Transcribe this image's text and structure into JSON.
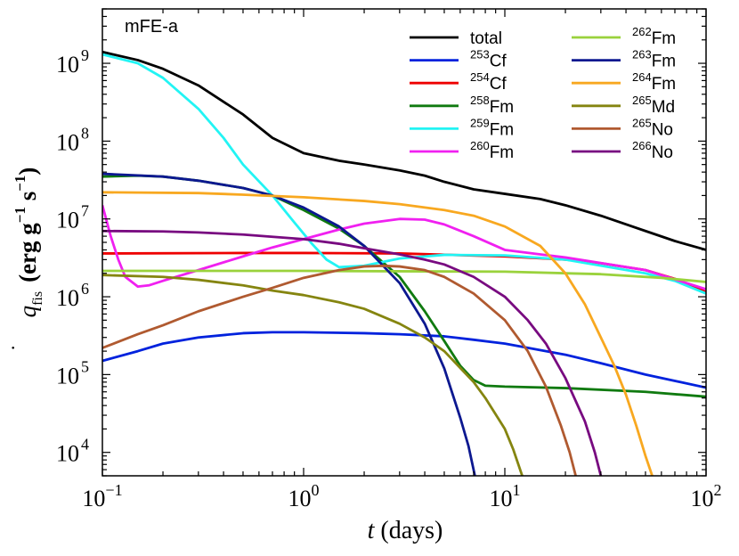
{
  "chart_data": {
    "type": "line",
    "panel_label": "mFE-a",
    "xlabel": {
      "var": "t",
      "rest": " (days)"
    },
    "ylabel": {
      "var": "q",
      "sub": "fis",
      "unit_pre": "(erg g",
      "unit_exp1": "−1",
      "unit_mid": " s",
      "unit_exp2": "−1",
      "unit_post": ")"
    },
    "xscale": "log",
    "yscale": "log",
    "xlim": [
      0.1,
      100
    ],
    "ylim": [
      5000,
      5000000000
    ],
    "xticks": [
      {
        "value": 0.1,
        "base": "10",
        "exp": "−1"
      },
      {
        "value": 1,
        "base": "10",
        "exp": "0"
      },
      {
        "value": 10,
        "base": "10",
        "exp": "1"
      },
      {
        "value": 100,
        "base": "10",
        "exp": "2"
      }
    ],
    "yticks": [
      {
        "value": 10000,
        "base": "10",
        "exp": "4"
      },
      {
        "value": 100000,
        "base": "10",
        "exp": "5"
      },
      {
        "value": 1000000,
        "base": "10",
        "exp": "6"
      },
      {
        "value": 10000000,
        "base": "10",
        "exp": "7"
      },
      {
        "value": 100000000,
        "base": "10",
        "exp": "8"
      },
      {
        "value": 1000000000,
        "base": "10",
        "exp": "9"
      }
    ],
    "legend_position": "top-right",
    "series": [
      {
        "name": "total",
        "sup": "",
        "base": "total",
        "color": "#000000",
        "points": [
          [
            0.1,
            1400000000.0
          ],
          [
            0.15,
            1100000000.0
          ],
          [
            0.2,
            850000000.0
          ],
          [
            0.3,
            520000000.0
          ],
          [
            0.5,
            220000000.0
          ],
          [
            0.7,
            110000000.0
          ],
          [
            1,
            70000000.0
          ],
          [
            1.5,
            56000000.0
          ],
          [
            2,
            50000000.0
          ],
          [
            3,
            42000000.0
          ],
          [
            4,
            36000000.0
          ],
          [
            5,
            30000000.0
          ],
          [
            7,
            24000000.0
          ],
          [
            10,
            21000000.0
          ],
          [
            15,
            18000000.0
          ],
          [
            20,
            15000000.0
          ],
          [
            30,
            11000000.0
          ],
          [
            50,
            7000000.0
          ],
          [
            70,
            5200000.0
          ],
          [
            100,
            4000000.0
          ]
        ]
      },
      {
        "name": "253Cf",
        "sup": "253",
        "base": "Cf",
        "color": "#0022dd",
        "points": [
          [
            0.1,
            150000.0
          ],
          [
            0.15,
            200000.0
          ],
          [
            0.2,
            250000.0
          ],
          [
            0.3,
            300000.0
          ],
          [
            0.5,
            340000.0
          ],
          [
            0.7,
            350000.0
          ],
          [
            1,
            350000.0
          ],
          [
            2,
            340000.0
          ],
          [
            3,
            330000.0
          ],
          [
            5,
            310000.0
          ],
          [
            7,
            280000.0
          ],
          [
            10,
            250000.0
          ],
          [
            20,
            180000.0
          ],
          [
            30,
            140000.0
          ],
          [
            50,
            100000.0
          ],
          [
            100,
            68000.0
          ]
        ]
      },
      {
        "name": "254Cf",
        "sup": "254",
        "base": "Cf",
        "color": "#ee0000",
        "points": [
          [
            0.1,
            3600000.0
          ],
          [
            0.5,
            3650000.0
          ],
          [
            1,
            3650000.0
          ],
          [
            3,
            3600000.0
          ],
          [
            10,
            3300000.0
          ],
          [
            20,
            3000000.0
          ],
          [
            30,
            2700000.0
          ],
          [
            50,
            2200000.0
          ],
          [
            70,
            1700000.0
          ],
          [
            100,
            1150000.0
          ]
        ]
      },
      {
        "name": "258Fm",
        "sup": "258",
        "base": "Fm",
        "color": "#107a10",
        "points": [
          [
            0.1,
            35000000.0
          ],
          [
            0.15,
            36000000.0
          ],
          [
            0.2,
            35000000.0
          ],
          [
            0.3,
            31000000.0
          ],
          [
            0.5,
            25000000.0
          ],
          [
            0.7,
            20000000.0
          ],
          [
            1,
            13000000.0
          ],
          [
            1.5,
            7500000.0
          ],
          [
            2,
            4500000.0
          ],
          [
            3,
            1800000.0
          ],
          [
            4,
            650000.0
          ],
          [
            5,
            270000.0
          ],
          [
            6,
            130000.0
          ],
          [
            7,
            85000.0
          ],
          [
            8,
            72000.0
          ],
          [
            10,
            70000.0
          ],
          [
            20,
            67000.0
          ],
          [
            50,
            60000.0
          ],
          [
            100,
            52000.0
          ]
        ]
      },
      {
        "name": "259Fm",
        "sup": "259",
        "base": "Fm",
        "color": "#22f4f4",
        "points": [
          [
            0.1,
            1300000000.0
          ],
          [
            0.15,
            1000000000.0
          ],
          [
            0.2,
            650000000.0
          ],
          [
            0.3,
            260000000.0
          ],
          [
            0.4,
            110000000.0
          ],
          [
            0.5,
            50000000.0
          ],
          [
            0.7,
            20000000.0
          ],
          [
            0.9,
            9000000.0
          ],
          [
            1.1,
            4800000.0
          ],
          [
            1.3,
            3000000.0
          ],
          [
            1.5,
            2400000.0
          ],
          [
            2,
            2500000.0
          ],
          [
            3,
            3100000.0
          ],
          [
            5,
            3450000.0
          ],
          [
            10,
            3400000.0
          ],
          [
            20,
            3000000.0
          ],
          [
            50,
            2000000.0
          ],
          [
            70,
            1600000.0
          ],
          [
            100,
            1100000.0
          ]
        ]
      },
      {
        "name": "260Fm",
        "sup": "260",
        "base": "Fm",
        "color": "#f020f0",
        "points": [
          [
            0.1,
            15000000.0
          ],
          [
            0.11,
            6000000.0
          ],
          [
            0.12,
            3000000.0
          ],
          [
            0.13,
            1800000.0
          ],
          [
            0.15,
            1350000.0
          ],
          [
            0.17,
            1400000.0
          ],
          [
            0.2,
            1600000.0
          ],
          [
            0.3,
            2200000.0
          ],
          [
            0.5,
            3300000.0
          ],
          [
            0.7,
            4300000.0
          ],
          [
            1,
            5500000.0
          ],
          [
            1.5,
            7300000.0
          ],
          [
            2,
            8700000.0
          ],
          [
            3,
            10000000.0
          ],
          [
            4,
            9800000.0
          ],
          [
            5,
            8500000.0
          ],
          [
            7,
            6000000.0
          ],
          [
            10,
            4000000.0
          ],
          [
            15,
            3500000.0
          ],
          [
            20,
            3200000.0
          ],
          [
            50,
            2200000.0
          ],
          [
            100,
            1250000.0
          ]
        ]
      },
      {
        "name": "262Fm",
        "sup": "262",
        "base": "Fm",
        "color": "#9ad23c",
        "points": [
          [
            0.1,
            2150000.0
          ],
          [
            1,
            2150000.0
          ],
          [
            10,
            2100000.0
          ],
          [
            30,
            1950000.0
          ],
          [
            60,
            1750000.0
          ],
          [
            100,
            1550000.0
          ]
        ]
      },
      {
        "name": "263Fm",
        "sup": "263",
        "base": "Fm",
        "color": "#0c1890",
        "points": [
          [
            0.1,
            38000000.0
          ],
          [
            0.2,
            35000000.0
          ],
          [
            0.3,
            31000000.0
          ],
          [
            0.5,
            25000000.0
          ],
          [
            0.7,
            20000000.0
          ],
          [
            1,
            14000000.0
          ],
          [
            1.5,
            8000000.0
          ],
          [
            2,
            4500000.0
          ],
          [
            3,
            1500000.0
          ],
          [
            4,
            450000.0
          ],
          [
            5,
            120000.0
          ],
          [
            6,
            28000.0
          ],
          [
            6.6,
            12000.0
          ],
          [
            7.1,
            5000.0
          ]
        ]
      },
      {
        "name": "264Fm",
        "sup": "264",
        "base": "Fm",
        "color": "#f8a820",
        "points": [
          [
            0.1,
            22000000.0
          ],
          [
            0.3,
            21500000.0
          ],
          [
            0.5,
            20500000.0
          ],
          [
            1,
            19000000.0
          ],
          [
            2,
            17000000.0
          ],
          [
            3,
            15500000.0
          ],
          [
            5,
            13000000.0
          ],
          [
            7,
            11000000.0
          ],
          [
            10,
            8000000.0
          ],
          [
            15,
            4500000.0
          ],
          [
            20,
            2000000.0
          ],
          [
            25,
            800000.0
          ],
          [
            30,
            300000.0
          ],
          [
            35,
            130000.0
          ],
          [
            40,
            55000.0
          ],
          [
            45,
            22000.0
          ],
          [
            50,
            9000.0
          ],
          [
            54,
            5000.0
          ]
        ]
      },
      {
        "name": "265Md",
        "sup": "265",
        "base": "Md",
        "color": "#858510",
        "points": [
          [
            0.1,
            1900000.0
          ],
          [
            0.2,
            1800000.0
          ],
          [
            0.3,
            1650000.0
          ],
          [
            0.5,
            1400000.0
          ],
          [
            0.7,
            1200000.0
          ],
          [
            1,
            1050000.0
          ],
          [
            1.5,
            850000.0
          ],
          [
            2,
            700000.0
          ],
          [
            3,
            450000.0
          ],
          [
            4,
            300000.0
          ],
          [
            5,
            200000.0
          ],
          [
            7,
            80000.0
          ],
          [
            8,
            50000.0
          ],
          [
            10,
            20000.0
          ],
          [
            11,
            11000.0
          ],
          [
            12.2,
            5000.0
          ]
        ]
      },
      {
        "name": "265No",
        "sup": "265",
        "base": "No",
        "color": "#b05a30",
        "points": [
          [
            0.1,
            220000.0
          ],
          [
            0.15,
            330000.0
          ],
          [
            0.2,
            430000.0
          ],
          [
            0.3,
            650000.0
          ],
          [
            0.5,
            1000000.0
          ],
          [
            0.7,
            1300000.0
          ],
          [
            1,
            1750000.0
          ],
          [
            1.5,
            2200000.0
          ],
          [
            2,
            2450000.0
          ],
          [
            2.5,
            2500000.0
          ],
          [
            3,
            2450000.0
          ],
          [
            4,
            2200000.0
          ],
          [
            5,
            1800000.0
          ],
          [
            7,
            1100000.0
          ],
          [
            10,
            500000.0
          ],
          [
            13,
            200000.0
          ],
          [
            16,
            70000.0
          ],
          [
            19,
            22000.0
          ],
          [
            21,
            10000.0
          ],
          [
            22.5,
            5000.0
          ]
        ]
      },
      {
        "name": "266No",
        "sup": "266",
        "base": "No",
        "color": "#780a80",
        "points": [
          [
            0.1,
            7000000.0
          ],
          [
            0.2,
            6900000.0
          ],
          [
            0.3,
            6700000.0
          ],
          [
            0.5,
            6300000.0
          ],
          [
            0.7,
            5900000.0
          ],
          [
            1,
            5500000.0
          ],
          [
            1.5,
            4800000.0
          ],
          [
            2,
            4200000.0
          ],
          [
            3,
            3500000.0
          ],
          [
            4,
            3000000.0
          ],
          [
            5,
            2600000.0
          ],
          [
            7,
            1800000.0
          ],
          [
            10,
            1000000.0
          ],
          [
            13,
            500000.0
          ],
          [
            16,
            250000.0
          ],
          [
            20,
            90000.0
          ],
          [
            25,
            25000.0
          ],
          [
            28,
            10000.0
          ],
          [
            30,
            5000.0
          ]
        ]
      }
    ]
  }
}
